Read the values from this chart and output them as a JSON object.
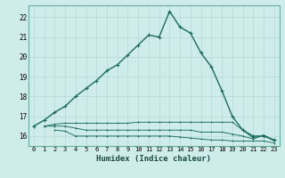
{
  "title": "",
  "xlabel": "Humidex (Indice chaleur)",
  "bg_color": "#ceecea",
  "grid_color": "#b8d8d5",
  "line_color": "#1a6b5e",
  "xlim": [
    -0.5,
    23.5
  ],
  "ylim": [
    15.5,
    22.6
  ],
  "xtick_vals": [
    0,
    1,
    2,
    3,
    4,
    5,
    6,
    7,
    8,
    9,
    10,
    11,
    12,
    13,
    14,
    15,
    16,
    17,
    18,
    19,
    20,
    21,
    22,
    23
  ],
  "ytick_vals": [
    16,
    17,
    18,
    19,
    20,
    21,
    22
  ],
  "main_line_x": [
    0,
    1,
    2,
    3,
    4,
    5,
    6,
    7,
    8,
    9,
    10,
    11,
    12,
    13,
    14,
    15,
    16,
    17,
    18,
    19,
    20,
    21,
    22,
    23
  ],
  "main_line_y": [
    16.5,
    16.8,
    17.2,
    17.5,
    18.0,
    18.4,
    18.8,
    19.3,
    19.6,
    20.1,
    20.6,
    21.1,
    21.0,
    22.3,
    21.5,
    21.2,
    20.2,
    19.5,
    18.3,
    17.0,
    16.3,
    16.0,
    16.0,
    15.8
  ],
  "flat_line1_x": [
    1,
    2,
    3,
    4,
    5,
    6,
    7,
    8,
    9,
    10,
    11,
    12,
    13,
    14,
    15,
    16,
    17,
    18,
    19,
    20,
    21,
    22,
    23
  ],
  "flat_line1_y": [
    16.5,
    16.6,
    16.65,
    16.65,
    16.65,
    16.65,
    16.65,
    16.65,
    16.65,
    16.7,
    16.7,
    16.7,
    16.7,
    16.7,
    16.7,
    16.7,
    16.7,
    16.7,
    16.7,
    16.3,
    15.9,
    16.05,
    15.8
  ],
  "flat_line2_x": [
    1,
    2,
    3,
    4,
    5,
    6,
    7,
    8,
    9,
    10,
    11,
    12,
    13,
    14,
    15,
    16,
    17,
    18,
    19,
    20,
    21,
    22,
    23
  ],
  "flat_line2_y": [
    16.5,
    16.5,
    16.5,
    16.4,
    16.3,
    16.3,
    16.3,
    16.3,
    16.3,
    16.3,
    16.3,
    16.3,
    16.3,
    16.3,
    16.3,
    16.2,
    16.2,
    16.2,
    16.1,
    16.0,
    15.85,
    16.05,
    15.75
  ],
  "flat_line3_x": [
    2,
    3,
    4,
    5,
    6,
    7,
    8,
    9,
    10,
    11,
    12,
    13,
    14,
    15,
    16,
    17,
    18,
    19,
    20,
    21,
    22,
    23
  ],
  "flat_line3_y": [
    16.3,
    16.25,
    16.0,
    16.0,
    16.0,
    16.0,
    16.0,
    16.0,
    16.0,
    16.0,
    16.0,
    16.0,
    15.95,
    15.9,
    15.85,
    15.8,
    15.8,
    15.75,
    15.75,
    15.75,
    15.75,
    15.65
  ]
}
